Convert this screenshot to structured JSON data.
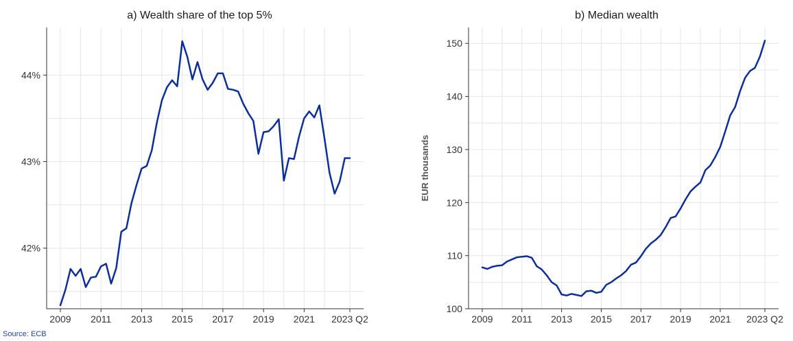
{
  "source": "Source: ECB",
  "colors": {
    "line": "#0a2e9c",
    "grid": "#e6e6e6",
    "axis": "#333333",
    "text": "#333333",
    "source": "#1f3fa8"
  },
  "chart_data": [
    {
      "type": "line",
      "title": "a) Wealth share of the top 5%",
      "xlabel": "",
      "ylabel": "",
      "xlim": [
        2009,
        2023.25
      ],
      "ylim": [
        41.3,
        44.55
      ],
      "x_ticks": [
        {
          "value": 2009,
          "label": "2009"
        },
        {
          "value": 2011,
          "label": "2011"
        },
        {
          "value": 2013,
          "label": "2013"
        },
        {
          "value": 2015,
          "label": "2015"
        },
        {
          "value": 2017,
          "label": "2017"
        },
        {
          "value": 2019,
          "label": "2019"
        },
        {
          "value": 2021,
          "label": "2021"
        },
        {
          "value": 2023.25,
          "label": "2023 Q2"
        }
      ],
      "x_minor_grid": [
        2010,
        2012,
        2014,
        2016,
        2018,
        2020,
        2022
      ],
      "y_ticks": [
        {
          "value": 42,
          "label": "42%"
        },
        {
          "value": 43,
          "label": "43%"
        },
        {
          "value": 44,
          "label": "44%"
        }
      ],
      "y_minor_grid": [
        41.5,
        42.5,
        43.5
      ],
      "grid": true,
      "series": [
        {
          "x": [
            2009.0,
            2009.25,
            2009.5,
            2009.75,
            2010.0,
            2010.25,
            2010.5,
            2010.75,
            2011.0,
            2011.25,
            2011.5,
            2011.75,
            2012.0,
            2012.25,
            2012.5,
            2012.75,
            2013.0,
            2013.25,
            2013.5,
            2013.75,
            2014.0,
            2014.25,
            2014.5,
            2014.75,
            2015.0,
            2015.25,
            2015.5,
            2015.75,
            2016.0,
            2016.25,
            2016.5,
            2016.75,
            2017.0,
            2017.25,
            2017.5,
            2017.75,
            2018.0,
            2018.25,
            2018.5,
            2018.75,
            2019.0,
            2019.25,
            2019.5,
            2019.75,
            2020.0,
            2020.25,
            2020.5,
            2020.75,
            2021.0,
            2021.25,
            2021.5,
            2021.75,
            2022.0,
            2022.25,
            2022.5,
            2022.75,
            2023.0,
            2023.25
          ],
          "values": [
            41.34,
            41.52,
            41.76,
            41.68,
            41.76,
            41.55,
            41.66,
            41.67,
            41.79,
            41.82,
            41.59,
            41.77,
            42.19,
            42.23,
            42.52,
            42.73,
            42.92,
            42.95,
            43.13,
            43.45,
            43.71,
            43.86,
            43.94,
            43.87,
            44.39,
            44.21,
            43.95,
            44.15,
            43.95,
            43.83,
            43.91,
            44.02,
            44.02,
            43.84,
            43.83,
            43.81,
            43.67,
            43.56,
            43.47,
            43.09,
            43.34,
            43.35,
            43.41,
            43.49,
            42.78,
            43.04,
            43.03,
            43.29,
            43.5,
            43.58,
            43.51,
            43.65,
            43.27,
            42.87,
            42.63,
            42.77,
            43.04,
            43.04
          ]
        }
      ]
    },
    {
      "type": "line",
      "title": "b) Median wealth",
      "xlabel": "",
      "ylabel": "EUR thousands",
      "xlim": [
        2009,
        2023.25
      ],
      "ylim": [
        100,
        153
      ],
      "x_ticks": [
        {
          "value": 2009,
          "label": "2009"
        },
        {
          "value": 2011,
          "label": "2011"
        },
        {
          "value": 2013,
          "label": "2013"
        },
        {
          "value": 2015,
          "label": "2015"
        },
        {
          "value": 2017,
          "label": "2017"
        },
        {
          "value": 2019,
          "label": "2019"
        },
        {
          "value": 2021,
          "label": "2021"
        },
        {
          "value": 2023.25,
          "label": "2023 Q2"
        }
      ],
      "x_minor_grid": [
        2010,
        2012,
        2014,
        2016,
        2018,
        2020,
        2022
      ],
      "y_ticks": [
        {
          "value": 100,
          "label": "100"
        },
        {
          "value": 110,
          "label": "110"
        },
        {
          "value": 120,
          "label": "120"
        },
        {
          "value": 130,
          "label": "130"
        },
        {
          "value": 140,
          "label": "140"
        },
        {
          "value": 150,
          "label": "150"
        }
      ],
      "y_minor_grid": [
        105,
        115,
        125,
        135,
        145
      ],
      "grid": true,
      "series": [
        {
          "x": [
            2009.0,
            2009.25,
            2009.5,
            2009.75,
            2010.0,
            2010.25,
            2010.5,
            2010.75,
            2011.0,
            2011.25,
            2011.5,
            2011.75,
            2012.0,
            2012.25,
            2012.5,
            2012.75,
            2013.0,
            2013.25,
            2013.5,
            2013.75,
            2014.0,
            2014.25,
            2014.5,
            2014.75,
            2015.0,
            2015.25,
            2015.5,
            2015.75,
            2016.0,
            2016.25,
            2016.5,
            2016.75,
            2017.0,
            2017.25,
            2017.5,
            2017.75,
            2018.0,
            2018.25,
            2018.5,
            2018.75,
            2019.0,
            2019.25,
            2019.5,
            2019.75,
            2020.0,
            2020.25,
            2020.5,
            2020.75,
            2021.0,
            2021.25,
            2021.5,
            2021.75,
            2022.0,
            2022.25,
            2022.5,
            2022.75,
            2023.0,
            2023.25
          ],
          "values": [
            107.8,
            107.5,
            107.9,
            108.1,
            108.2,
            108.9,
            109.3,
            109.7,
            109.8,
            109.9,
            109.6,
            108.0,
            107.4,
            106.3,
            105.0,
            104.4,
            102.7,
            102.5,
            102.8,
            102.6,
            102.4,
            103.3,
            103.4,
            103.0,
            103.2,
            104.5,
            105.0,
            105.7,
            106.3,
            107.1,
            108.3,
            108.7,
            109.9,
            111.3,
            112.3,
            113.0,
            113.9,
            115.4,
            117.1,
            117.4,
            118.9,
            120.6,
            122.1,
            123.0,
            123.8,
            126.1,
            127.0,
            128.6,
            130.5,
            133.4,
            136.4,
            138.0,
            141.0,
            143.5,
            144.8,
            145.4,
            147.5,
            150.5
          ]
        }
      ]
    }
  ]
}
